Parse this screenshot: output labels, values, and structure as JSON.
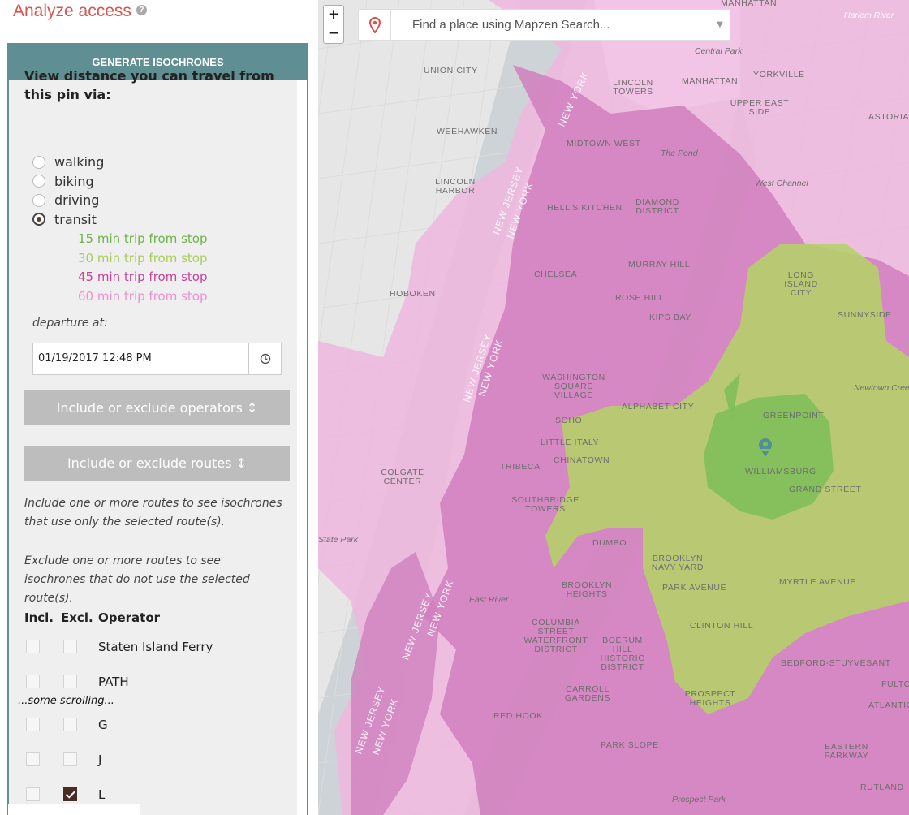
{
  "sidebar": {
    "title": "Analyze access",
    "panel_header": "GENERATE ISOCHRONES",
    "lead_text": "View distance you can travel from this pin via:",
    "modes": [
      {
        "label": "walking",
        "checked": false
      },
      {
        "label": "biking",
        "checked": false
      },
      {
        "label": "driving",
        "checked": false
      },
      {
        "label": "transit",
        "checked": true
      }
    ],
    "legend": [
      {
        "label": "15 min trip from stop",
        "color": "#6fb34a"
      },
      {
        "label": "30 min trip from stop",
        "color": "#a9cc59"
      },
      {
        "label": "45 min trip from stop",
        "color": "#c6449a"
      },
      {
        "label": "60 min trip from stop",
        "color": "#ef8fcf"
      }
    ],
    "departure_label": "departure at:",
    "departure_value": "01/19/2017 12:48 PM",
    "operators_button": "Include or exclude operators ↕",
    "routes_button": "Include or exclude routes ↕",
    "include_help": "Include one or more routes to see isochrones that use only the selected route(s).",
    "exclude_help": "Exclude one or more routes to see isochrones that do not use the selected route(s).",
    "table_headers": {
      "incl": "Incl.",
      "excl": "Excl.",
      "operator": "Operator"
    },
    "operators_top": [
      {
        "name": "Staten Island Ferry",
        "incl": false,
        "excl": false
      },
      {
        "name": "PATH",
        "incl": false,
        "excl": false
      }
    ],
    "scroll_note": "...some scrolling...",
    "operators_bottom": [
      {
        "name": "G",
        "incl": false,
        "excl": false
      },
      {
        "name": "J",
        "incl": false,
        "excl": false
      },
      {
        "name": "L",
        "incl": false,
        "excl": true
      }
    ]
  },
  "map": {
    "zoom_in": "+",
    "zoom_out": "−",
    "search_placeholder": "Find a place using Mapzen Search...",
    "labels": [
      {
        "text": "MANHATTAN",
        "italic": false
      },
      {
        "text": "Harlem River",
        "italic": true
      },
      {
        "text": "Central Park",
        "italic": true
      },
      {
        "text": "UNION CITY",
        "italic": false
      },
      {
        "text": "YORKVILLE",
        "italic": false
      },
      {
        "text": "MANHATTAN",
        "italic": false
      },
      {
        "text": "LINCOLN TOWERS",
        "italic": false
      },
      {
        "text": "UPPER EAST SIDE",
        "italic": false
      },
      {
        "text": "ASTORIA",
        "italic": false
      },
      {
        "text": "WEEHAWKEN",
        "italic": false
      },
      {
        "text": "MIDTOWN WEST",
        "italic": false
      },
      {
        "text": "The Pond",
        "italic": true
      },
      {
        "text": "West Channel",
        "italic": true
      },
      {
        "text": "LINCOLN HARBOR",
        "italic": false
      },
      {
        "text": "HELL'S KITCHEN",
        "italic": false
      },
      {
        "text": "DIAMOND DISTRICT",
        "italic": false
      },
      {
        "text": "MURRAY HILL",
        "italic": false
      },
      {
        "text": "CHELSEA",
        "italic": false
      },
      {
        "text": "LONG ISLAND CITY",
        "italic": false
      },
      {
        "text": "HOBOKEN",
        "italic": false
      },
      {
        "text": "ROSE HILL",
        "italic": false
      },
      {
        "text": "KIPS BAY",
        "italic": false
      },
      {
        "text": "SUNNYSIDE",
        "italic": false
      },
      {
        "text": "WASHINGTON SQUARE VILLAGE",
        "italic": false
      },
      {
        "text": "Newtown Creek",
        "italic": true
      },
      {
        "text": "ALPHABET CITY",
        "italic": false
      },
      {
        "text": "GREENPOINT",
        "italic": false
      },
      {
        "text": "SOHO",
        "italic": false
      },
      {
        "text": "LITTLE ITALY",
        "italic": false
      },
      {
        "text": "CHINATOWN",
        "italic": false
      },
      {
        "text": "TRIBECA",
        "italic": false
      },
      {
        "text": "WILLIAMSBURG",
        "italic": false
      },
      {
        "text": "COLGATE CENTER",
        "italic": false
      },
      {
        "text": "SOUTHBRIDGE TOWERS",
        "italic": false
      },
      {
        "text": "GRAND STREET",
        "italic": false
      },
      {
        "text": "State Park",
        "italic": true
      },
      {
        "text": "DUMBO",
        "italic": false
      },
      {
        "text": "BROOKLYN NAVY YARD",
        "italic": false
      },
      {
        "text": "PARK AVENUE",
        "italic": false
      },
      {
        "text": "BROOKLYN HEIGHTS",
        "italic": false
      },
      {
        "text": "MYRTLE AVENUE",
        "italic": false
      },
      {
        "text": "East River",
        "italic": true
      },
      {
        "text": "CLINTON HILL",
        "italic": false
      },
      {
        "text": "COLUMBIA STREET WATERFRONT DISTRICT",
        "italic": false
      },
      {
        "text": "BOERUM HILL HISTORIC DISTRICT",
        "italic": false
      },
      {
        "text": "BEDFORD-STUYVESANT",
        "italic": false
      },
      {
        "text": "CARROLL GARDENS",
        "italic": false
      },
      {
        "text": "PROSPECT HEIGHTS",
        "italic": false
      },
      {
        "text": "RED HOOK",
        "italic": false
      },
      {
        "text": "PARK SLOPE",
        "italic": false
      },
      {
        "text": "EASTERN PARKWAY",
        "italic": false
      },
      {
        "text": "Prospect Park",
        "italic": true
      },
      {
        "text": "RUTLAND",
        "italic": false
      },
      {
        "text": "ATLANTIC",
        "italic": false
      },
      {
        "text": "FULTON",
        "italic": false
      }
    ],
    "state_labels": [
      "NEW YORK",
      "NEW JERSEY",
      "NEW YORK",
      "NEW JERSEY",
      "NEW YORK",
      "NEW JERSEY",
      "NEW YORK",
      "NEW JERSEY",
      "NEW YORK"
    ],
    "colors": {
      "base": "#e9e9e9",
      "water": "#ced4d6",
      "iso15": "#7fbf5a",
      "iso30": "#b6cf6a",
      "iso45": "#d07fbd",
      "iso60": "#efb6de"
    }
  }
}
